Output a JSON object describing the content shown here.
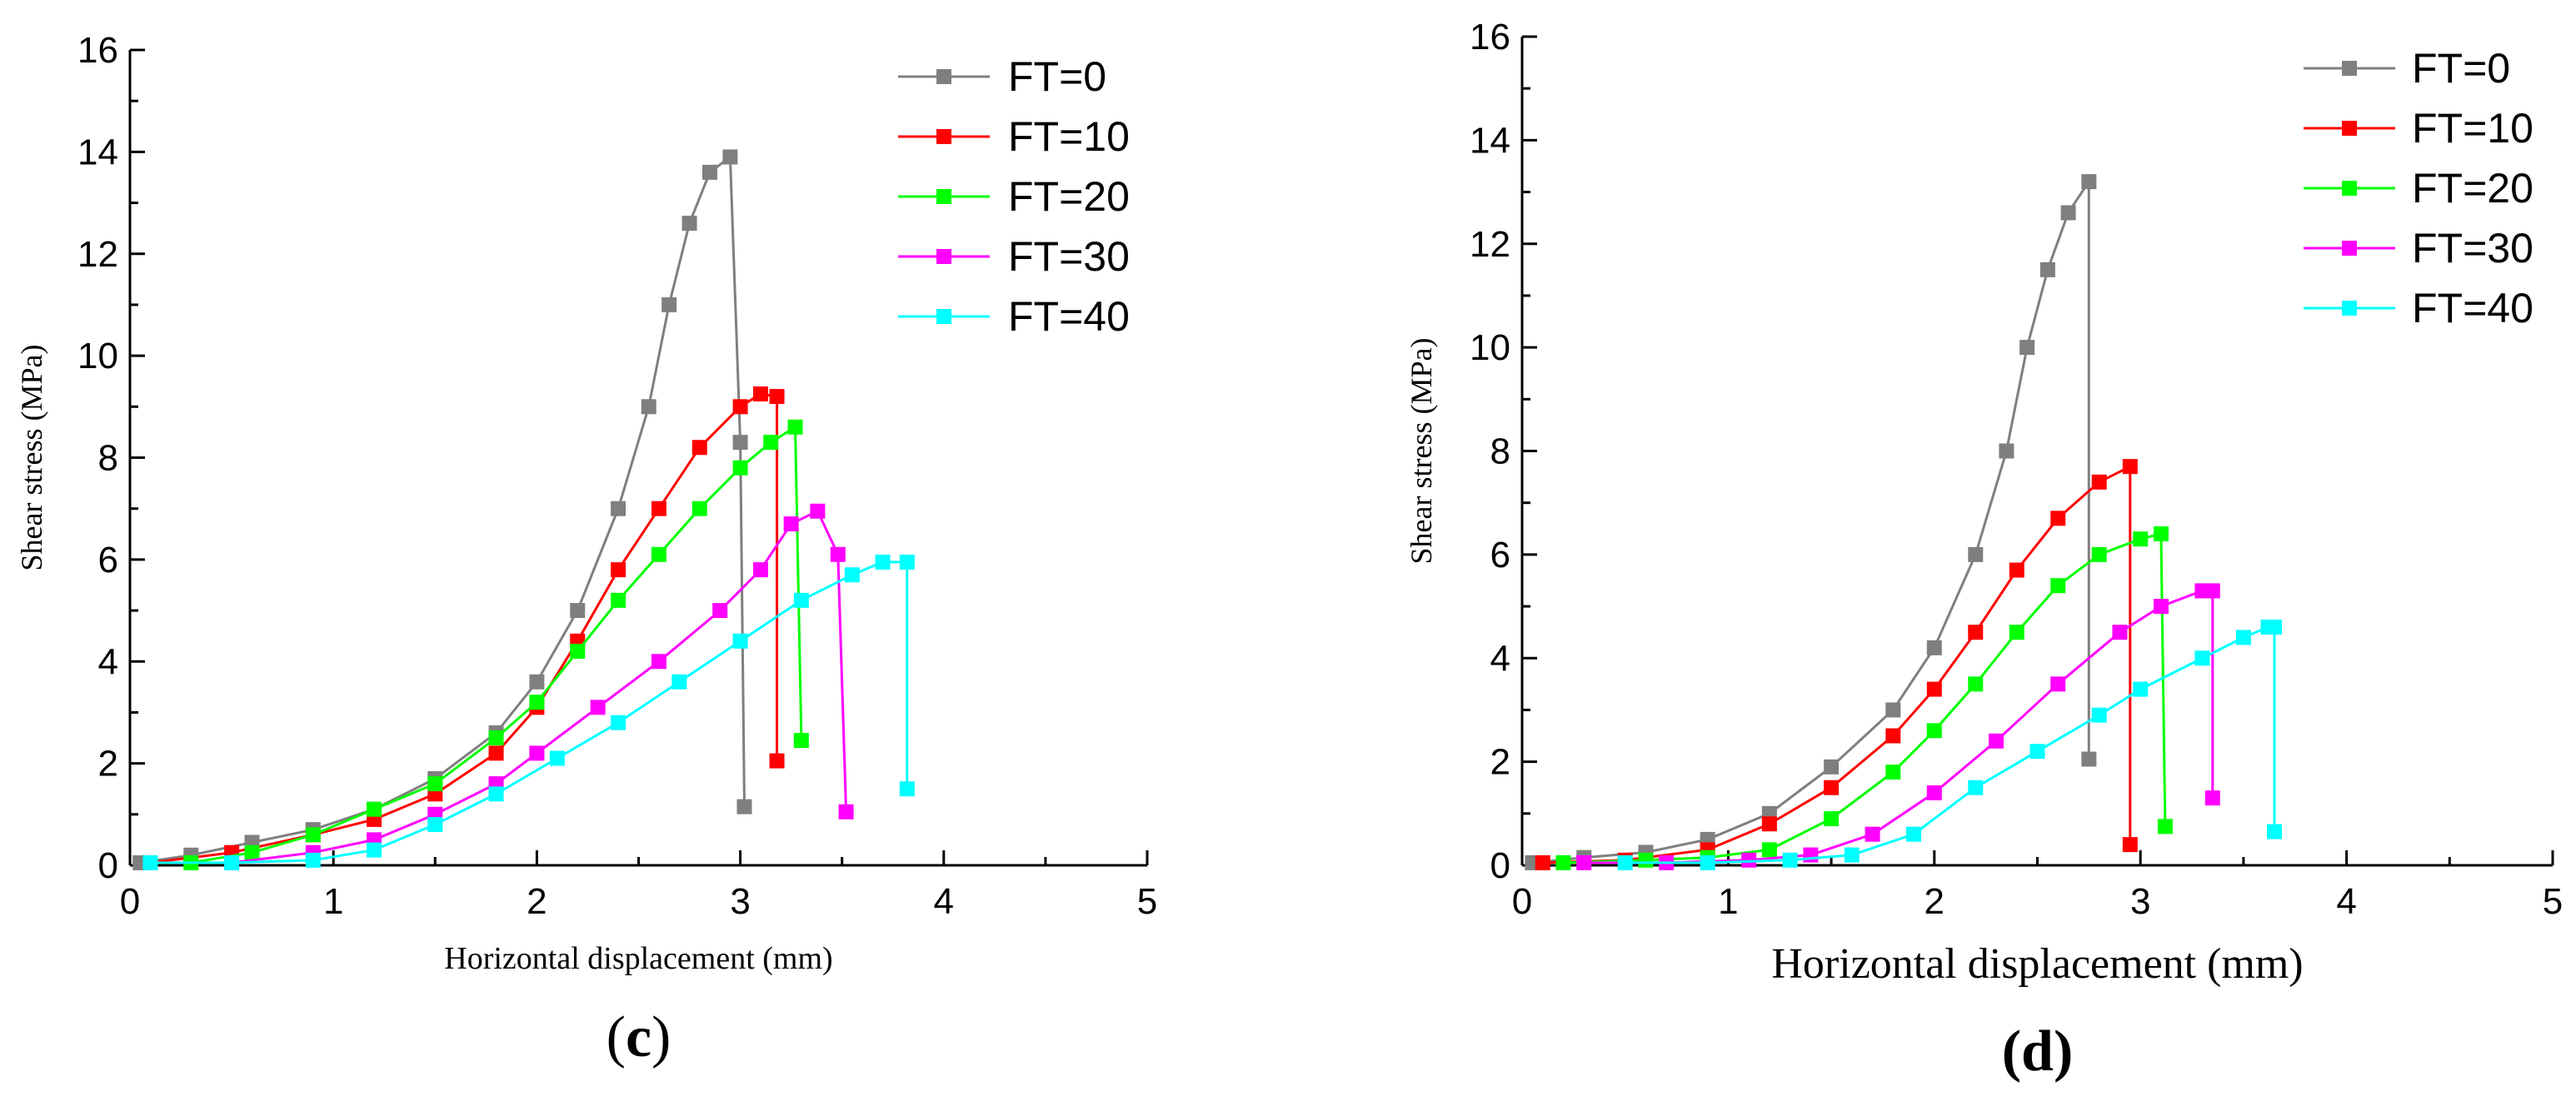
{
  "chart_data": [
    {
      "id": "c",
      "type": "line",
      "panel_label": "(c)",
      "panel_open": "(",
      "panel_letter": "c",
      "panel_close": ")",
      "xlabel": "Horizontal displacement (mm)",
      "ylabel": "Shear stress (MPa)",
      "xlim": [
        0,
        5
      ],
      "ylim": [
        0,
        16
      ],
      "xticks": [
        0,
        1,
        2,
        3,
        4,
        5
      ],
      "yticks": [
        0,
        2,
        4,
        6,
        8,
        10,
        12,
        14,
        16
      ],
      "legend_position": "top-right",
      "series": [
        {
          "name": "FT=0",
          "color": "#7f7f7f",
          "points": [
            [
              0.05,
              0.05
            ],
            [
              0.3,
              0.2
            ],
            [
              0.6,
              0.45
            ],
            [
              0.9,
              0.7
            ],
            [
              1.2,
              1.1
            ],
            [
              1.5,
              1.7
            ],
            [
              1.8,
              2.6
            ],
            [
              2.0,
              3.6
            ],
            [
              2.2,
              5.0
            ],
            [
              2.4,
              7.0
            ],
            [
              2.55,
              9.0
            ],
            [
              2.65,
              11.0
            ],
            [
              2.75,
              12.6
            ],
            [
              2.85,
              13.6
            ],
            [
              2.95,
              13.9
            ],
            [
              3.0,
              8.3
            ],
            [
              3.02,
              1.15
            ]
          ]
        },
        {
          "name": "FT=10",
          "color": "#ff0000",
          "points": [
            [
              0.1,
              0.05
            ],
            [
              0.5,
              0.25
            ],
            [
              0.9,
              0.6
            ],
            [
              1.2,
              0.9
            ],
            [
              1.5,
              1.4
            ],
            [
              1.8,
              2.2
            ],
            [
              2.0,
              3.1
            ],
            [
              2.2,
              4.4
            ],
            [
              2.4,
              5.8
            ],
            [
              2.6,
              7.0
            ],
            [
              2.8,
              8.2
            ],
            [
              3.0,
              9.0
            ],
            [
              3.1,
              9.25
            ],
            [
              3.18,
              9.2
            ],
            [
              3.18,
              2.05
            ]
          ]
        },
        {
          "name": "FT=20",
          "color": "#00ff00",
          "points": [
            [
              0.3,
              0.05
            ],
            [
              0.6,
              0.25
            ],
            [
              0.9,
              0.6
            ],
            [
              1.2,
              1.1
            ],
            [
              1.5,
              1.6
            ],
            [
              1.8,
              2.5
            ],
            [
              2.0,
              3.2
            ],
            [
              2.2,
              4.2
            ],
            [
              2.4,
              5.2
            ],
            [
              2.6,
              6.1
            ],
            [
              2.8,
              7.0
            ],
            [
              3.0,
              7.8
            ],
            [
              3.15,
              8.3
            ],
            [
              3.27,
              8.6
            ],
            [
              3.3,
              2.45
            ]
          ]
        },
        {
          "name": "FT=30",
          "color": "#ff00ff",
          "points": [
            [
              0.5,
              0.05
            ],
            [
              0.9,
              0.25
            ],
            [
              1.2,
              0.5
            ],
            [
              1.5,
              1.0
            ],
            [
              1.8,
              1.6
            ],
            [
              2.0,
              2.2
            ],
            [
              2.3,
              3.1
            ],
            [
              2.6,
              4.0
            ],
            [
              2.9,
              5.0
            ],
            [
              3.1,
              5.8
            ],
            [
              3.25,
              6.7
            ],
            [
              3.38,
              6.95
            ],
            [
              3.48,
              6.1
            ],
            [
              3.52,
              1.05
            ]
          ]
        },
        {
          "name": "FT=40",
          "color": "#00ffff",
          "points": [
            [
              0.1,
              0.05
            ],
            [
              0.5,
              0.05
            ],
            [
              0.9,
              0.1
            ],
            [
              1.2,
              0.3
            ],
            [
              1.5,
              0.8
            ],
            [
              1.8,
              1.4
            ],
            [
              2.1,
              2.1
            ],
            [
              2.4,
              2.8
            ],
            [
              2.7,
              3.6
            ],
            [
              3.0,
              4.4
            ],
            [
              3.3,
              5.2
            ],
            [
              3.55,
              5.7
            ],
            [
              3.7,
              5.95
            ],
            [
              3.82,
              5.95
            ],
            [
              3.82,
              1.5
            ]
          ]
        }
      ]
    },
    {
      "id": "d",
      "type": "line",
      "panel_label": "(d)",
      "panel_open": "(",
      "panel_letter": "d",
      "panel_close": ")",
      "xlabel": "Horizontal displacement (mm)",
      "ylabel": "Shear stress (MPa)",
      "xlim": [
        0,
        5
      ],
      "ylim": [
        0,
        16
      ],
      "xticks": [
        0,
        1,
        2,
        3,
        4,
        5
      ],
      "yticks": [
        0,
        2,
        4,
        6,
        8,
        10,
        12,
        14,
        16
      ],
      "legend_position": "top-right",
      "series": [
        {
          "name": "FT=0",
          "color": "#7f7f7f",
          "points": [
            [
              0.05,
              0.05
            ],
            [
              0.3,
              0.15
            ],
            [
              0.6,
              0.25
            ],
            [
              0.9,
              0.5
            ],
            [
              1.2,
              1.0
            ],
            [
              1.5,
              1.9
            ],
            [
              1.8,
              3.0
            ],
            [
              2.0,
              4.2
            ],
            [
              2.2,
              6.0
            ],
            [
              2.35,
              8.0
            ],
            [
              2.45,
              10.0
            ],
            [
              2.55,
              11.5
            ],
            [
              2.65,
              12.6
            ],
            [
              2.75,
              13.2
            ],
            [
              2.75,
              2.05
            ]
          ]
        },
        {
          "name": "FT=10",
          "color": "#ff0000",
          "points": [
            [
              0.1,
              0.05
            ],
            [
              0.5,
              0.1
            ],
            [
              0.9,
              0.3
            ],
            [
              1.2,
              0.8
            ],
            [
              1.5,
              1.5
            ],
            [
              1.8,
              2.5
            ],
            [
              2.0,
              3.4
            ],
            [
              2.2,
              4.5
            ],
            [
              2.4,
              5.7
            ],
            [
              2.6,
              6.7
            ],
            [
              2.8,
              7.4
            ],
            [
              2.95,
              7.7
            ],
            [
              2.95,
              0.4
            ]
          ]
        },
        {
          "name": "FT=20",
          "color": "#00ff00",
          "points": [
            [
              0.2,
              0.05
            ],
            [
              0.6,
              0.1
            ],
            [
              0.9,
              0.15
            ],
            [
              1.2,
              0.3
            ],
            [
              1.5,
              0.9
            ],
            [
              1.8,
              1.8
            ],
            [
              2.0,
              2.6
            ],
            [
              2.2,
              3.5
            ],
            [
              2.4,
              4.5
            ],
            [
              2.6,
              5.4
            ],
            [
              2.8,
              6.0
            ],
            [
              3.0,
              6.3
            ],
            [
              3.1,
              6.4
            ],
            [
              3.12,
              0.75
            ]
          ]
        },
        {
          "name": "FT=30",
          "color": "#ff00ff",
          "points": [
            [
              0.3,
              0.05
            ],
            [
              0.7,
              0.05
            ],
            [
              1.1,
              0.1
            ],
            [
              1.4,
              0.2
            ],
            [
              1.7,
              0.6
            ],
            [
              2.0,
              1.4
            ],
            [
              2.3,
              2.4
            ],
            [
              2.6,
              3.5
            ],
            [
              2.9,
              4.5
            ],
            [
              3.1,
              5.0
            ],
            [
              3.3,
              5.3
            ],
            [
              3.35,
              5.3
            ],
            [
              3.35,
              1.3
            ]
          ]
        },
        {
          "name": "FT=40",
          "color": "#00ffff",
          "points": [
            [
              0.5,
              0.05
            ],
            [
              0.9,
              0.05
            ],
            [
              1.3,
              0.1
            ],
            [
              1.6,
              0.2
            ],
            [
              1.9,
              0.6
            ],
            [
              2.2,
              1.5
            ],
            [
              2.5,
              2.2
            ],
            [
              2.8,
              2.9
            ],
            [
              3.0,
              3.4
            ],
            [
              3.3,
              4.0
            ],
            [
              3.5,
              4.4
            ],
            [
              3.62,
              4.6
            ],
            [
              3.65,
              4.6
            ],
            [
              3.65,
              0.65
            ]
          ]
        }
      ]
    }
  ]
}
